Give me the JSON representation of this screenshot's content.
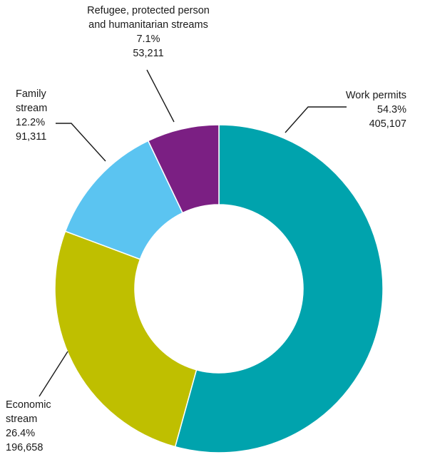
{
  "chart_data": {
    "type": "pie",
    "donut": true,
    "categories": [
      "Work permits",
      "Economic stream",
      "Family stream",
      "Refugee, protected person and humanitarian streams"
    ],
    "series": [
      {
        "values": [
          54.3,
          26.4,
          12.2,
          7.1
        ],
        "counts": [
          405107,
          196658,
          91311,
          53211
        ]
      }
    ],
    "slices": [
      {
        "name_lines": [
          "Work permits"
        ],
        "percent": "54.3%",
        "count": "405,107",
        "color": "#00a3ad"
      },
      {
        "name_lines": [
          "Economic",
          "stream"
        ],
        "percent": "26.4%",
        "count": "196,658",
        "color": "#bfbf00"
      },
      {
        "name_lines": [
          "Family",
          "stream"
        ],
        "percent": "12.2%",
        "count": "91,311",
        "color": "#5bc4f1"
      },
      {
        "name_lines": [
          "Refugee, protected person",
          "and humanitarian streams"
        ],
        "percent": "7.1%",
        "count": "53,211",
        "color": "#7b1f83"
      }
    ],
    "legend": "none (callout labels)"
  }
}
